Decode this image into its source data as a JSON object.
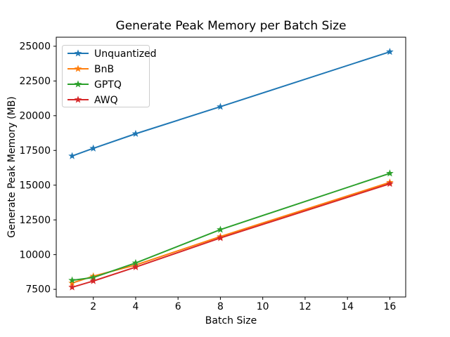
{
  "figure": {
    "background": "#ffffff",
    "spine_color": "#000000"
  },
  "chart_data": {
    "type": "line",
    "title": "Generate Peak Memory per Batch Size",
    "xlabel": "Batch Size",
    "ylabel": "Generate Peak Memory (MB)",
    "x": [
      1,
      2,
      4,
      8,
      16
    ],
    "series": [
      {
        "name": "Unquantized",
        "color": "#1f77b4",
        "marker": "star",
        "values": [
          17100,
          17650,
          18700,
          20650,
          24600
        ]
      },
      {
        "name": "BnB",
        "color": "#ff7f0e",
        "marker": "star",
        "values": [
          7950,
          8450,
          9250,
          11300,
          15200
        ]
      },
      {
        "name": "GPTQ",
        "color": "#2ca02c",
        "marker": "star",
        "values": [
          8150,
          8350,
          9400,
          11800,
          15850
        ]
      },
      {
        "name": "AWQ",
        "color": "#d62728",
        "marker": "star",
        "values": [
          7650,
          8100,
          9100,
          11200,
          15100
        ]
      }
    ],
    "xlim": [
      0.25,
      16.75
    ],
    "ylim": [
      6950,
      25650
    ],
    "xticks": [
      2,
      4,
      6,
      8,
      10,
      12,
      14,
      16
    ],
    "yticks": [
      7500,
      10000,
      12500,
      15000,
      17500,
      20000,
      22500,
      25000
    ],
    "grid": false,
    "legend_position": "upper left",
    "legend_border_color": "#cccccc"
  }
}
